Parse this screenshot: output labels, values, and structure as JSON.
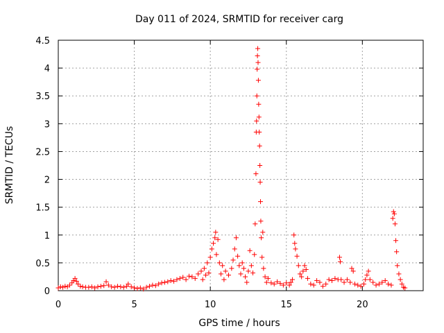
{
  "chart_data": {
    "type": "scatter",
    "title": "Day 011 of 2024, SRMTID for receiver carg",
    "xlabel": "GPS time / hours",
    "ylabel": "SRMTID / TECUs",
    "xlim": [
      0,
      24
    ],
    "ylim": [
      0,
      4.5
    ],
    "xticks": [
      0,
      5,
      10,
      15,
      20
    ],
    "yticks": [
      0,
      0.5,
      1,
      1.5,
      2,
      2.5,
      3,
      3.5,
      4,
      4.5
    ],
    "xtick_labels": [
      "0",
      "5",
      "10",
      "15",
      "20"
    ],
    "ytick_labels": [
      "0",
      "0.5",
      "1",
      "1.5",
      "2",
      "2.5",
      "3",
      "3.5",
      "4",
      "4.5"
    ],
    "grid": true,
    "marker": "plus",
    "color": "#ff0000",
    "series": [
      {
        "name": "SRMTID",
        "points": [
          [
            0.0,
            0.05
          ],
          [
            0.15,
            0.07
          ],
          [
            0.3,
            0.06
          ],
          [
            0.45,
            0.08
          ],
          [
            0.6,
            0.07
          ],
          [
            0.75,
            0.1
          ],
          [
            0.9,
            0.14
          ],
          [
            1.0,
            0.18
          ],
          [
            1.1,
            0.22
          ],
          [
            1.2,
            0.17
          ],
          [
            1.3,
            0.12
          ],
          [
            1.45,
            0.08
          ],
          [
            1.6,
            0.07
          ],
          [
            1.8,
            0.06
          ],
          [
            2.0,
            0.06
          ],
          [
            2.2,
            0.07
          ],
          [
            2.4,
            0.05
          ],
          [
            2.6,
            0.07
          ],
          [
            2.8,
            0.08
          ],
          [
            3.0,
            0.09
          ],
          [
            3.15,
            0.16
          ],
          [
            3.3,
            0.1
          ],
          [
            3.5,
            0.07
          ],
          [
            3.7,
            0.06
          ],
          [
            3.9,
            0.08
          ],
          [
            4.1,
            0.07
          ],
          [
            4.3,
            0.06
          ],
          [
            4.5,
            0.08
          ],
          [
            4.6,
            0.12
          ],
          [
            4.8,
            0.07
          ],
          [
            5.0,
            0.05
          ],
          [
            5.2,
            0.04
          ],
          [
            5.4,
            0.05
          ],
          [
            5.6,
            0.03
          ],
          [
            5.8,
            0.06
          ],
          [
            6.0,
            0.08
          ],
          [
            6.2,
            0.1
          ],
          [
            6.4,
            0.09
          ],
          [
            6.6,
            0.12
          ],
          [
            6.8,
            0.14
          ],
          [
            7.0,
            0.15
          ],
          [
            7.2,
            0.16
          ],
          [
            7.4,
            0.18
          ],
          [
            7.6,
            0.17
          ],
          [
            7.8,
            0.2
          ],
          [
            8.0,
            0.22
          ],
          [
            8.2,
            0.24
          ],
          [
            8.4,
            0.2
          ],
          [
            8.6,
            0.26
          ],
          [
            8.8,
            0.25
          ],
          [
            9.0,
            0.22
          ],
          [
            9.2,
            0.3
          ],
          [
            9.4,
            0.35
          ],
          [
            9.5,
            0.2
          ],
          [
            9.6,
            0.4
          ],
          [
            9.7,
            0.28
          ],
          [
            9.8,
            0.5
          ],
          [
            9.9,
            0.32
          ],
          [
            10.0,
            0.6
          ],
          [
            10.1,
            0.75
          ],
          [
            10.2,
            0.85
          ],
          [
            10.3,
            0.95
          ],
          [
            10.35,
            1.05
          ],
          [
            10.4,
            0.65
          ],
          [
            10.5,
            0.92
          ],
          [
            10.6,
            0.5
          ],
          [
            10.7,
            0.3
          ],
          [
            10.8,
            0.45
          ],
          [
            10.9,
            0.2
          ],
          [
            11.0,
            0.35
          ],
          [
            11.2,
            0.28
          ],
          [
            11.4,
            0.4
          ],
          [
            11.5,
            0.55
          ],
          [
            11.6,
            0.75
          ],
          [
            11.7,
            0.95
          ],
          [
            11.8,
            0.62
          ],
          [
            11.9,
            0.45
          ],
          [
            12.0,
            0.3
          ],
          [
            12.1,
            0.5
          ],
          [
            12.2,
            0.4
          ],
          [
            12.3,
            0.25
          ],
          [
            12.4,
            0.15
          ],
          [
            12.5,
            0.35
          ],
          [
            12.6,
            0.72
          ],
          [
            12.7,
            0.45
          ],
          [
            12.8,
            0.32
          ],
          [
            12.9,
            0.65
          ],
          [
            12.95,
            1.2
          ],
          [
            13.0,
            2.1
          ],
          [
            13.02,
            2.85
          ],
          [
            13.04,
            3.05
          ],
          [
            13.06,
            3.5
          ],
          [
            13.08,
            3.98
          ],
          [
            13.1,
            4.22
          ],
          [
            13.12,
            4.35
          ],
          [
            13.14,
            4.1
          ],
          [
            13.16,
            3.78
          ],
          [
            13.18,
            3.35
          ],
          [
            13.2,
            3.12
          ],
          [
            13.22,
            2.85
          ],
          [
            13.24,
            2.6
          ],
          [
            13.26,
            2.25
          ],
          [
            13.28,
            1.95
          ],
          [
            13.3,
            1.6
          ],
          [
            13.32,
            1.25
          ],
          [
            13.35,
            0.95
          ],
          [
            13.4,
            0.6
          ],
          [
            13.45,
            1.05
          ],
          [
            13.5,
            0.4
          ],
          [
            13.6,
            0.25
          ],
          [
            13.7,
            0.15
          ],
          [
            13.8,
            0.22
          ],
          [
            14.0,
            0.14
          ],
          [
            14.2,
            0.12
          ],
          [
            14.4,
            0.16
          ],
          [
            14.6,
            0.13
          ],
          [
            14.8,
            0.1
          ],
          [
            15.0,
            0.14
          ],
          [
            15.2,
            0.1
          ],
          [
            15.3,
            0.15
          ],
          [
            15.4,
            0.2
          ],
          [
            15.5,
            1.0
          ],
          [
            15.55,
            0.85
          ],
          [
            15.6,
            0.75
          ],
          [
            15.7,
            0.62
          ],
          [
            15.8,
            0.45
          ],
          [
            15.9,
            0.3
          ],
          [
            16.0,
            0.25
          ],
          [
            16.1,
            0.35
          ],
          [
            16.2,
            0.45
          ],
          [
            16.3,
            0.38
          ],
          [
            16.4,
            0.22
          ],
          [
            16.6,
            0.12
          ],
          [
            16.8,
            0.1
          ],
          [
            17.0,
            0.18
          ],
          [
            17.2,
            0.15
          ],
          [
            17.4,
            0.08
          ],
          [
            17.6,
            0.12
          ],
          [
            17.8,
            0.2
          ],
          [
            18.0,
            0.18
          ],
          [
            18.2,
            0.22
          ],
          [
            18.4,
            0.2
          ],
          [
            18.5,
            0.6
          ],
          [
            18.55,
            0.52
          ],
          [
            18.6,
            0.2
          ],
          [
            18.8,
            0.15
          ],
          [
            19.0,
            0.2
          ],
          [
            19.2,
            0.15
          ],
          [
            19.3,
            0.4
          ],
          [
            19.4,
            0.35
          ],
          [
            19.5,
            0.12
          ],
          [
            19.7,
            0.1
          ],
          [
            19.9,
            0.08
          ],
          [
            20.1,
            0.12
          ],
          [
            20.2,
            0.2
          ],
          [
            20.3,
            0.28
          ],
          [
            20.4,
            0.35
          ],
          [
            20.5,
            0.2
          ],
          [
            20.7,
            0.15
          ],
          [
            20.9,
            0.1
          ],
          [
            21.1,
            0.12
          ],
          [
            21.3,
            0.15
          ],
          [
            21.5,
            0.18
          ],
          [
            21.7,
            0.12
          ],
          [
            21.9,
            0.1
          ],
          [
            22.0,
            1.3
          ],
          [
            22.05,
            1.42
          ],
          [
            22.1,
            1.38
          ],
          [
            22.15,
            1.2
          ],
          [
            22.2,
            0.9
          ],
          [
            22.25,
            0.7
          ],
          [
            22.3,
            0.45
          ],
          [
            22.4,
            0.3
          ],
          [
            22.5,
            0.2
          ],
          [
            22.6,
            0.12
          ],
          [
            22.7,
            0.06
          ],
          [
            22.8,
            0.05
          ]
        ]
      }
    ]
  }
}
